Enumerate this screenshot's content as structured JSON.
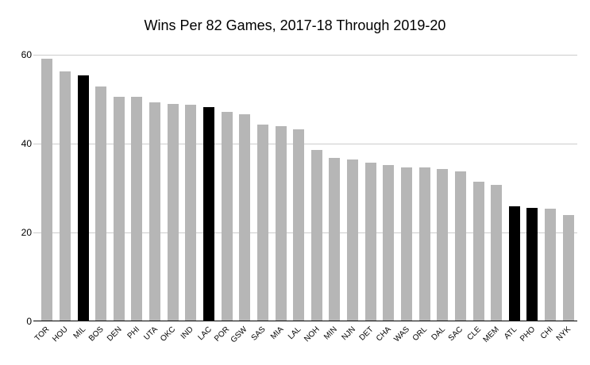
{
  "chart_data": {
    "type": "bar",
    "title": "Wins Per 82 Games, 2017-18 Through 2019-20",
    "categories": [
      "TOR",
      "HOU",
      "MIL",
      "BOS",
      "DEN",
      "PHI",
      "UTA",
      "OKC",
      "IND",
      "LAC",
      "POR",
      "GSW",
      "SAS",
      "MIA",
      "LAL",
      "NOH",
      "MIN",
      "NJN",
      "DET",
      "CHA",
      "WAS",
      "ORL",
      "DAL",
      "SAC",
      "CLE",
      "MEM",
      "ATL",
      "PHO",
      "CHI",
      "NYK"
    ],
    "values": [
      59.1,
      56.3,
      55.4,
      52.8,
      50.5,
      50.5,
      49.3,
      49.0,
      48.8,
      48.3,
      47.2,
      46.6,
      44.3,
      43.9,
      43.3,
      38.6,
      36.7,
      36.5,
      35.7,
      35.1,
      34.7,
      34.6,
      34.3,
      33.7,
      31.5,
      30.8,
      25.9,
      25.6,
      25.4,
      23.9
    ],
    "highlighted_categories": [
      "MIL",
      "LAC",
      "ATL",
      "PHO"
    ],
    "xlabel": "",
    "ylabel": "",
    "ylim": [
      0,
      60
    ],
    "y_ticks": [
      60,
      40,
      20,
      0
    ],
    "grid": "horizontal",
    "legend_position": "none",
    "bar_color": "#b6b6b6",
    "highlight_color": "#000000",
    "gridline_color": "#cccccc",
    "axis_color": "#000000",
    "background_color": "#ffffff"
  }
}
